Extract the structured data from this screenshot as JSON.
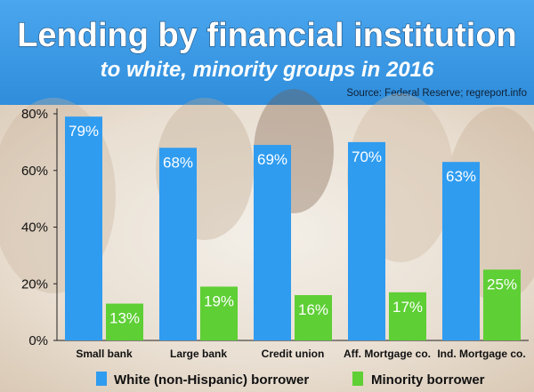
{
  "header": {
    "title": "Lending by financial institution",
    "subtitle": "to white, minority groups in 2016",
    "source": "Source: Federal Reserve; regreport.info"
  },
  "colors": {
    "header_bg": "#3d9ae6",
    "white_series": "#2f9cf0",
    "minority_series": "#5ecf35",
    "plot_bg": "#f1ece4",
    "text_dark": "#111111"
  },
  "chart_data": {
    "type": "bar",
    "title": "Lending by financial institution",
    "subtitle": "to white, minority groups in 2016",
    "categories": [
      "Small bank",
      "Large bank",
      "Credit union",
      "Aff. Mortgage co.",
      "Ind. Mortgage co."
    ],
    "series": [
      {
        "name": "White (non-Hispanic) borrower",
        "values": [
          79,
          68,
          69,
          70,
          63
        ],
        "labels": [
          "79%",
          "68%",
          "69%",
          "70%",
          "63%"
        ]
      },
      {
        "name": "Minority borrower",
        "values": [
          13,
          19,
          16,
          17,
          25
        ],
        "labels": [
          "13%",
          "19%",
          "16%",
          "17%",
          "25%"
        ]
      }
    ],
    "ylim": [
      0,
      80
    ],
    "yticks": [
      0,
      20,
      40,
      60,
      80
    ],
    "ytick_labels": [
      "0%",
      "20%",
      "40%",
      "60%",
      "80%"
    ],
    "legend": {
      "position": "bottom"
    },
    "grid": false
  }
}
